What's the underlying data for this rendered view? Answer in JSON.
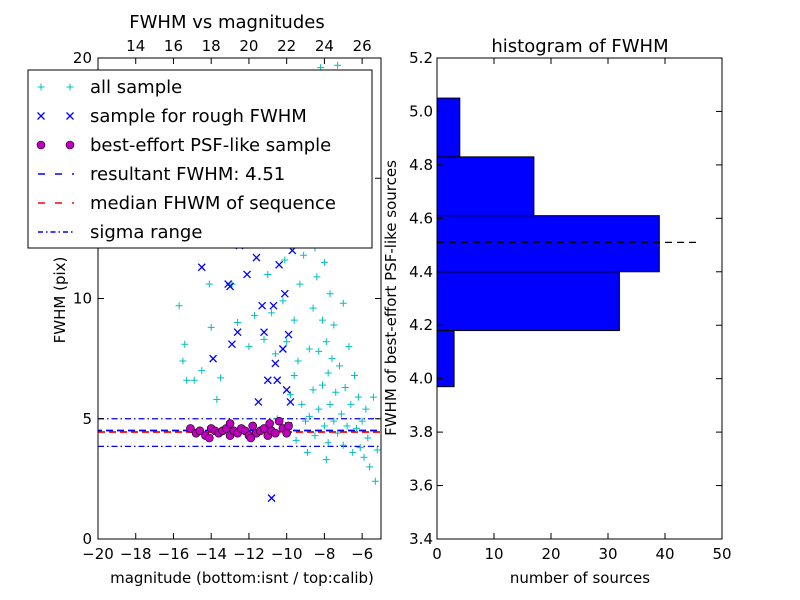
{
  "chart_data": [
    {
      "type": "scatter",
      "title": "FWHM vs magnitudes",
      "xlabel": "magnitude (bottom:isnt / top:calib)",
      "ylabel": "FWHM (pix)",
      "xlim": [
        -20,
        -5
      ],
      "ylim": [
        0,
        20
      ],
      "top_xlim": [
        12,
        27
      ],
      "xticks": [
        "−20",
        "−18",
        "−16",
        "−14",
        "−12",
        "−10",
        "−8",
        "−6"
      ],
      "yticks": [
        "0",
        "5",
        "10",
        "15",
        "20"
      ],
      "top_xticks": [
        "14",
        "16",
        "18",
        "20",
        "22",
        "24",
        "26"
      ],
      "grid": false,
      "legend_position": "top-left",
      "legend": [
        {
          "label": "all sample",
          "color": "#00bfbf",
          "marker": "plus"
        },
        {
          "label": "sample for rough FWHM",
          "color": "#0000ff",
          "marker": "x"
        },
        {
          "label": "best-effort PSF-like sample",
          "color": "#bf00bf",
          "marker": "circle"
        },
        {
          "label": "resultant FWHM: 4.51",
          "color": "#0000ff",
          "marker": "dashed"
        },
        {
          "label": "median FHWM of sequence",
          "color": "#ff0000",
          "marker": "dashed"
        },
        {
          "label": "sigma range",
          "color": "#0000ff",
          "marker": "dashdot"
        }
      ],
      "lines": {
        "resultant_fwhm": 4.51,
        "median_fwhm_sequence": 4.45,
        "sigma_range": [
          3.85,
          5.0
        ]
      },
      "series": [
        {
          "name": "all sample",
          "points": [
            [
              -15.7,
              9.7
            ],
            [
              -15.5,
              7.4
            ],
            [
              -15.4,
              8.1
            ],
            [
              -15.3,
              6.6
            ],
            [
              -14.9,
              6.6
            ],
            [
              -14.6,
              12.4
            ],
            [
              -14.5,
              7.0
            ],
            [
              -14.1,
              10.6
            ],
            [
              -14.0,
              8.8
            ],
            [
              -13.7,
              5.8
            ],
            [
              -13.5,
              6.7
            ],
            [
              -13.2,
              13.4
            ],
            [
              -12.9,
              10.6
            ],
            [
              -12.6,
              9.0
            ],
            [
              -12.0,
              8.0
            ],
            [
              -11.5,
              12.7
            ],
            [
              -11.2,
              8.3
            ],
            [
              -11.0,
              11.0
            ],
            [
              -10.8,
              9.4
            ],
            [
              -10.6,
              7.7
            ],
            [
              -10.5,
              5.0
            ],
            [
              -10.3,
              13.5
            ],
            [
              -10.1,
              11.6
            ],
            [
              -10.0,
              8.2
            ],
            [
              -9.8,
              6.0
            ],
            [
              -9.7,
              12.6
            ],
            [
              -9.6,
              9.1
            ],
            [
              -9.5,
              4.1
            ],
            [
              -9.4,
              7.4
            ],
            [
              -9.3,
              10.6
            ],
            [
              -9.2,
              5.6
            ],
            [
              -9.1,
              11.8
            ],
            [
              -9.0,
              4.9
            ],
            [
              -8.9,
              13.2
            ],
            [
              -8.8,
              7.9
            ],
            [
              -8.8,
              5.1
            ],
            [
              -8.7,
              14.4
            ],
            [
              -8.6,
              9.6
            ],
            [
              -8.6,
              6.2
            ],
            [
              -8.5,
              12.1
            ],
            [
              -8.5,
              4.3
            ],
            [
              -8.4,
              16.3
            ],
            [
              -8.4,
              10.9
            ],
            [
              -8.3,
              7.8
            ],
            [
              -8.3,
              5.4
            ],
            [
              -8.2,
              19.6
            ],
            [
              -8.2,
              13.7
            ],
            [
              -8.1,
              9.1
            ],
            [
              -8.1,
              6.4
            ],
            [
              -8.0,
              4.7
            ],
            [
              -8.0,
              11.5
            ],
            [
              -7.9,
              8.2
            ],
            [
              -7.9,
              15.5
            ],
            [
              -7.8,
              6.9
            ],
            [
              -7.8,
              4.0
            ],
            [
              -7.7,
              10.2
            ],
            [
              -7.7,
              5.6
            ],
            [
              -7.6,
              7.5
            ],
            [
              -7.6,
              18.9
            ],
            [
              -7.5,
              4.9
            ],
            [
              -7.5,
              8.9
            ],
            [
              -7.4,
              6.1
            ],
            [
              -7.3,
              12.8
            ],
            [
              -7.3,
              4.4
            ],
            [
              -7.2,
              7.2
            ],
            [
              -7.1,
              5.2
            ],
            [
              -7.0,
              9.8
            ],
            [
              -7.0,
              3.9
            ],
            [
              -6.9,
              6.3
            ],
            [
              -6.8,
              4.7
            ],
            [
              -6.7,
              8.0
            ],
            [
              -6.6,
              5.6
            ],
            [
              -6.5,
              3.6
            ],
            [
              -6.4,
              6.8
            ],
            [
              -6.3,
              4.6
            ],
            [
              -6.2,
              5.9
            ],
            [
              -6.1,
              3.8
            ],
            [
              -6.0,
              4.9
            ],
            [
              -5.9,
              3.4
            ],
            [
              -5.8,
              5.4
            ],
            [
              -5.7,
              4.2
            ],
            [
              -5.6,
              3.0
            ],
            [
              -5.4,
              5.9
            ],
            [
              -5.3,
              2.4
            ],
            [
              -5.2,
              3.7
            ],
            [
              -8.9,
              3.6
            ],
            [
              -9.6,
              6.8
            ],
            [
              -10.2,
              9.9
            ],
            [
              -11.7,
              9.3
            ],
            [
              -7.9,
              3.3
            ],
            [
              -8.6,
              16.9
            ],
            [
              -8.0,
              17.7
            ],
            [
              -7.3,
              19.7
            ]
          ]
        },
        {
          "name": "sample for rough FWHM",
          "points": [
            [
              -14.5,
              11.3
            ],
            [
              -13.3,
              12.3
            ],
            [
              -13.1,
              10.6
            ],
            [
              -13.0,
              10.5
            ],
            [
              -12.9,
              8.1
            ],
            [
              -12.6,
              8.6
            ],
            [
              -12.5,
              12.2
            ],
            [
              -12.1,
              11.0
            ],
            [
              -11.8,
              13.9
            ],
            [
              -11.6,
              11.7
            ],
            [
              -11.5,
              5.7
            ],
            [
              -11.2,
              8.6
            ],
            [
              -11.0,
              6.6
            ],
            [
              -10.9,
              12.8
            ],
            [
              -10.7,
              9.7
            ],
            [
              -10.6,
              7.3
            ],
            [
              -10.5,
              6.6
            ],
            [
              -10.4,
              11.4
            ],
            [
              -10.3,
              14.5
            ],
            [
              -10.2,
              7.9
            ],
            [
              -10.1,
              10.2
            ],
            [
              -10.0,
              6.2
            ],
            [
              -9.9,
              8.5
            ],
            [
              -9.8,
              5.7
            ],
            [
              -9.7,
              12.0
            ],
            [
              -10.8,
              1.7
            ],
            [
              -13.9,
              7.5
            ],
            [
              -11.3,
              9.7
            ],
            [
              -9.9,
              4.7
            ]
          ]
        },
        {
          "name": "best-effort PSF-like sample",
          "points": [
            [
              -15.1,
              4.6
            ],
            [
              -14.8,
              4.4
            ],
            [
              -14.6,
              4.5
            ],
            [
              -14.3,
              4.3
            ],
            [
              -14.0,
              4.6
            ],
            [
              -13.8,
              4.5
            ],
            [
              -13.6,
              4.4
            ],
            [
              -13.4,
              4.5
            ],
            [
              -13.2,
              4.6
            ],
            [
              -13.0,
              4.3
            ],
            [
              -12.8,
              4.5
            ],
            [
              -12.6,
              4.4
            ],
            [
              -12.4,
              4.6
            ],
            [
              -12.2,
              4.5
            ],
            [
              -12.0,
              4.3
            ],
            [
              -11.8,
              4.7
            ],
            [
              -11.6,
              4.4
            ],
            [
              -11.4,
              4.5
            ],
            [
              -11.2,
              4.6
            ],
            [
              -11.0,
              4.3
            ],
            [
              -10.8,
              4.5
            ],
            [
              -10.6,
              4.4
            ],
            [
              -10.4,
              4.9
            ],
            [
              -10.2,
              4.6
            ],
            [
              -10.0,
              4.4
            ],
            [
              -13.0,
              4.8
            ],
            [
              -11.9,
              4.2
            ],
            [
              -10.9,
              4.8
            ],
            [
              -9.9,
              4.7
            ],
            [
              -14.1,
              4.2
            ]
          ]
        }
      ]
    },
    {
      "type": "bar",
      "orientation": "horizontal",
      "title": "histogram of FWHM",
      "xlabel": "number of sources",
      "ylabel": "FWHM of best-effort PSF-like sources",
      "xlim": [
        0,
        50
      ],
      "ylim": [
        3.4,
        5.2
      ],
      "xticks": [
        "0",
        "10",
        "20",
        "30",
        "40",
        "50"
      ],
      "yticks": [
        "3.4",
        "3.6",
        "3.8",
        "4.0",
        "4.2",
        "4.4",
        "4.6",
        "4.8",
        "5.0",
        "5.2"
      ],
      "bin_edges": [
        3.97,
        4.18,
        4.4,
        4.61,
        4.83,
        5.05
      ],
      "counts": [
        3,
        32,
        39,
        17,
        4
      ],
      "bar_color": "#0000ff",
      "resultant_line": 4.51,
      "grid": false
    }
  ]
}
